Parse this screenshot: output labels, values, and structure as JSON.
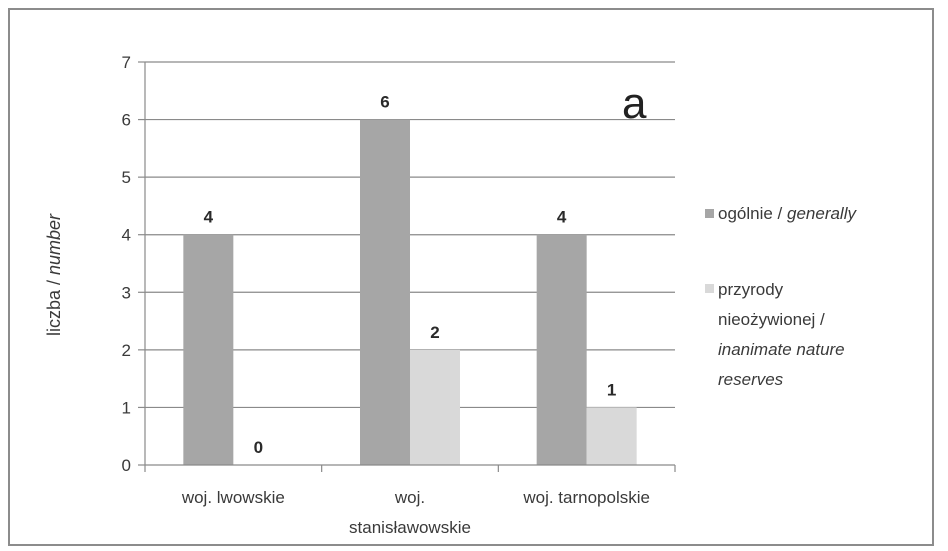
{
  "chart_data": {
    "type": "bar",
    "categories": [
      "woj. lwowskie",
      "woj. stanisławowskie",
      "woj. tarnopolskie"
    ],
    "category_lines": [
      [
        "woj. lwowskie"
      ],
      [
        "woj.",
        "stanisławowskie"
      ],
      [
        "woj. tarnopolskie"
      ]
    ],
    "series": [
      {
        "name": "ogólnie / generally",
        "name_parts": [
          {
            "text": "ogólnie / ",
            "italic": false
          },
          {
            "text": "generally",
            "italic": true
          }
        ],
        "values": [
          4,
          6,
          4
        ],
        "color": "#a6a6a6"
      },
      {
        "name": "przyrody nieożywionej / inanimate nature reserves",
        "name_lines": [
          [
            {
              "text": "przyrody",
              "italic": false
            }
          ],
          [
            {
              "text": "nieożywionej /",
              "italic": false
            }
          ],
          [
            {
              "text": "inanimate nature",
              "italic": true
            }
          ],
          [
            {
              "text": "reserves",
              "italic": true
            }
          ]
        ],
        "values": [
          0,
          2,
          1
        ],
        "color": "#d9d9d9"
      }
    ],
    "ylabel_parts": [
      {
        "text": "liczba / ",
        "italic": false
      },
      {
        "text": "number",
        "italic": true
      }
    ],
    "ylabel": "liczba / number",
    "xlabel": "",
    "ylim": [
      0,
      7
    ],
    "yticks": [
      0,
      1,
      2,
      3,
      4,
      5,
      6,
      7
    ],
    "panel_label": "a",
    "grid": "horizontal",
    "legend_position": "right"
  }
}
